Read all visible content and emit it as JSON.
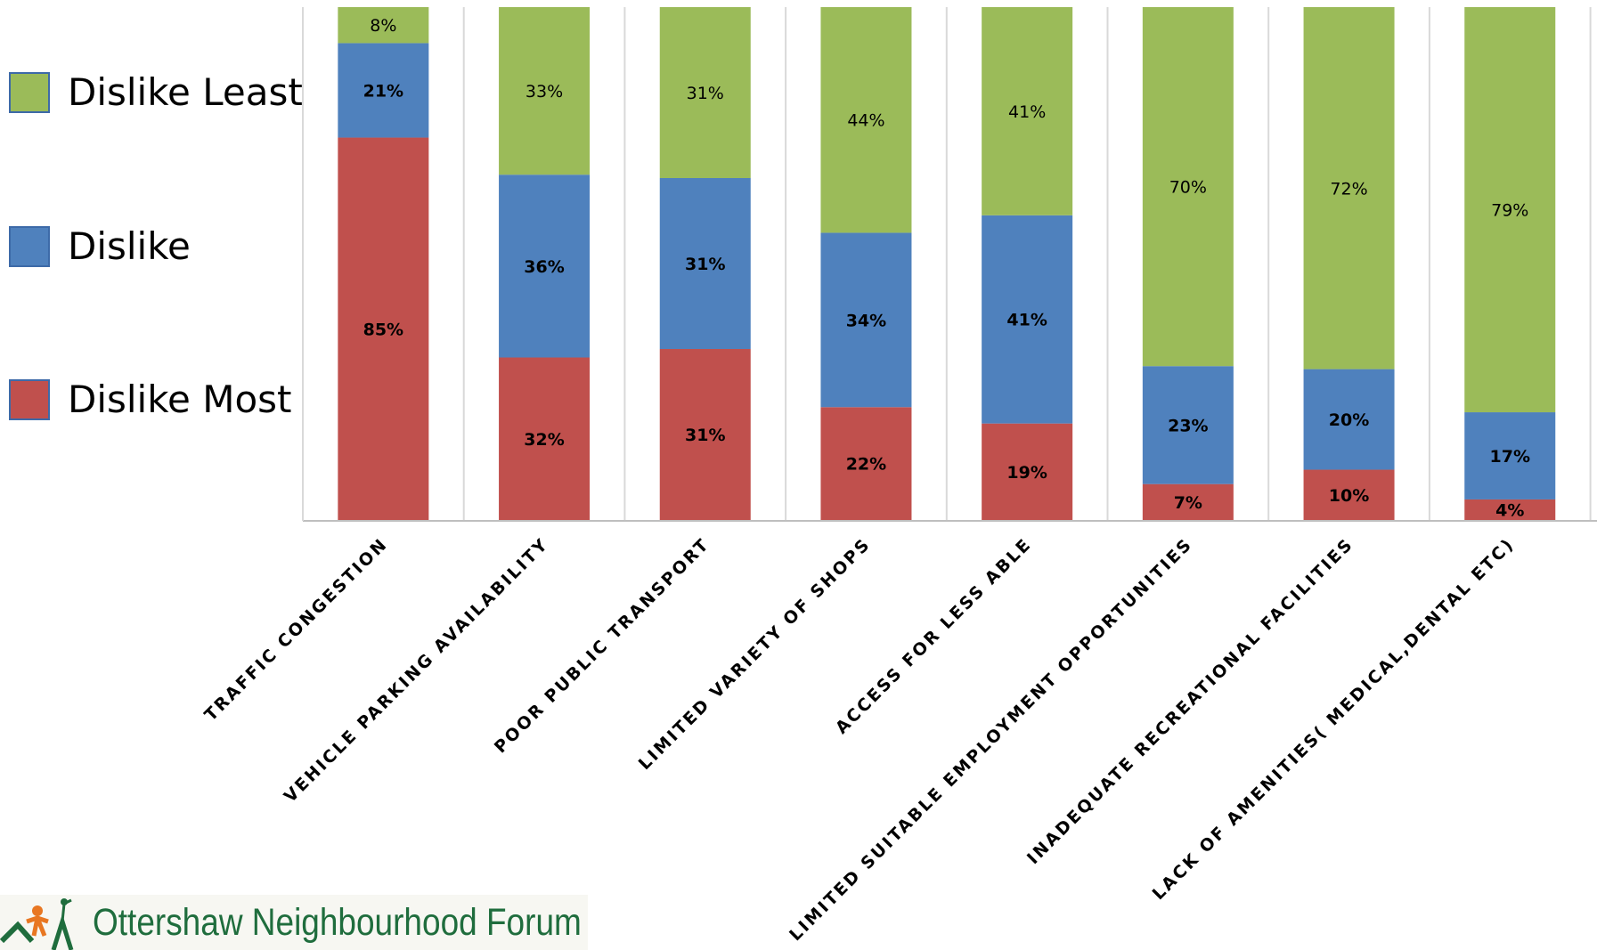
{
  "chart_data": {
    "type": "bar",
    "stacked": true,
    "categories": [
      "TRAFFIC CONGESTION",
      "VEHICLE PARKING AVAILABILITY",
      "POOR PUBLIC TRANSPORT",
      "LIMITED VARIETY OF SHOPS",
      "ACCESS FOR LESS ABLE",
      "LIMITED SUITABLE EMPLOYMENT OPPORTUNITIES",
      "INADEQUATE RECREATIONAL FACILITIES",
      "LACK OF AMENITIES( MEDICAL,DENTAL ETC)"
    ],
    "series": [
      {
        "name": "Dislike Most",
        "color": "#c0504d",
        "values": [
          85,
          32,
          31,
          22,
          19,
          7,
          10,
          4
        ],
        "labels": [
          "85%",
          "32%",
          "31%",
          "22%",
          "19%",
          "7%",
          "10%",
          "4%"
        ]
      },
      {
        "name": "Dislike",
        "color": "#4f81bd",
        "values": [
          21,
          36,
          31,
          34,
          41,
          23,
          20,
          17
        ],
        "labels": [
          "21%",
          "36%",
          "31%",
          "34%",
          "41%",
          "23%",
          "20%",
          "17%"
        ]
      },
      {
        "name": "Dislike Least",
        "color": "#9bbb59",
        "values": [
          8,
          33,
          31,
          44,
          41,
          70,
          72,
          79
        ],
        "labels": [
          "8%",
          "33%",
          "31%",
          "44%",
          "41%",
          "70%",
          "72%",
          "79%"
        ]
      }
    ],
    "normalized_100_percent": true,
    "grid": "vertical lines between categories",
    "legend_position": "left"
  },
  "legend": {
    "least": "Dislike Least",
    "mid": "Dislike",
    "most": "Dislike Most"
  },
  "logo": {
    "text": "Ottershaw Neighbourhood Forum"
  }
}
